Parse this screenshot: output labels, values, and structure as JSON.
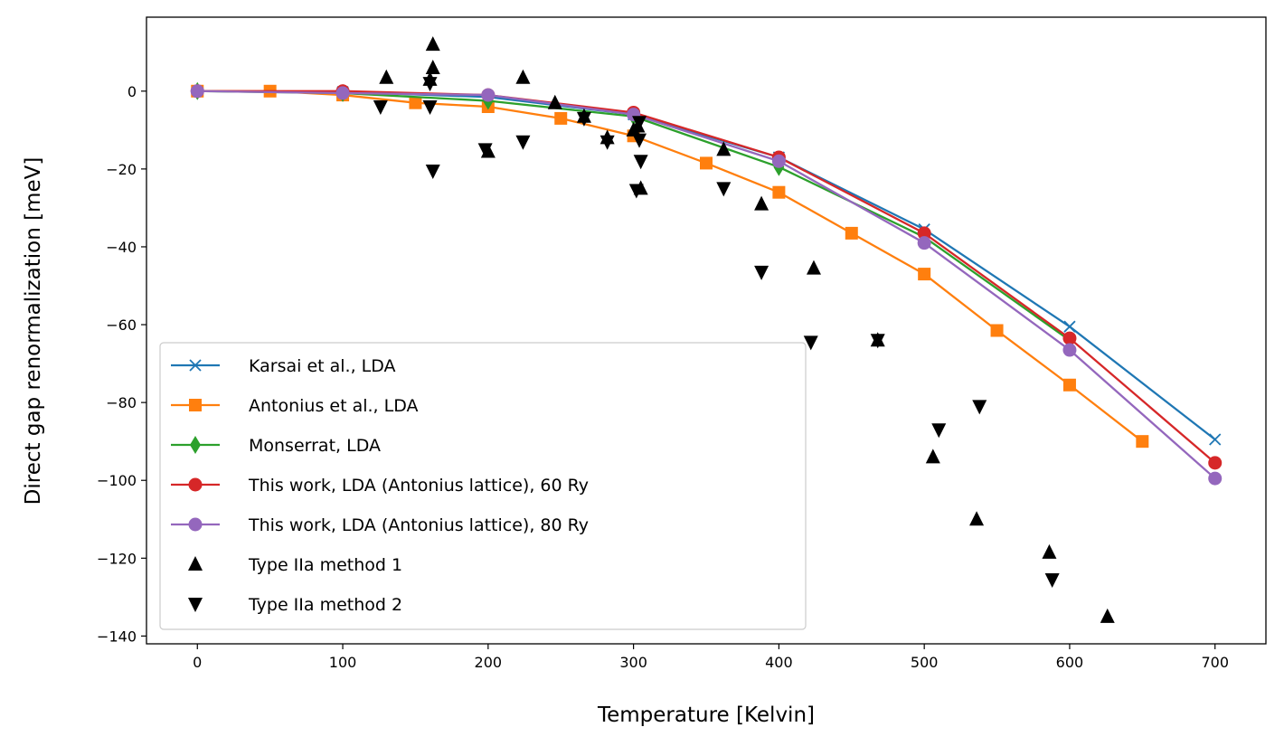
{
  "chart_data": {
    "type": "line",
    "title": "",
    "xlabel": "Temperature [Kelvin]",
    "ylabel": "Direct gap renormalization [meV]",
    "xlim": [
      -35,
      735
    ],
    "ylim": [
      -142,
      19
    ],
    "xticks": [
      0,
      100,
      200,
      300,
      400,
      500,
      600,
      700
    ],
    "yticks": [
      0,
      -20,
      -40,
      -60,
      -80,
      -100,
      -120,
      -140
    ],
    "grid": false,
    "legend_position": "lower-left",
    "series": [
      {
        "name": "Karsai et al., LDA",
        "color": "#1f77b4",
        "marker": "x",
        "line": true,
        "x": [
          0,
          100,
          200,
          300,
          400,
          500,
          600,
          700
        ],
        "y": [
          0,
          -0.2,
          -1.5,
          -6,
          -17,
          -35.5,
          -60.5,
          -89.5
        ]
      },
      {
        "name": "Antonius et al., LDA",
        "color": "#ff7f0e",
        "marker": "square",
        "line": true,
        "x": [
          0,
          50,
          100,
          150,
          200,
          250,
          300,
          350,
          400,
          450,
          500,
          550,
          600,
          650
        ],
        "y": [
          0,
          0,
          -1,
          -3,
          -4,
          -7,
          -11.5,
          -18.5,
          -26,
          -36.5,
          -47,
          -61.5,
          -75.5,
          -90
        ]
      },
      {
        "name": "Monserrat, LDA",
        "color": "#2ca02c",
        "marker": "diamond",
        "line": true,
        "x": [
          0,
          100,
          200,
          300,
          400,
          500,
          600
        ],
        "y": [
          0,
          -0.5,
          -2.5,
          -6.5,
          -19.5,
          -37.5,
          -64
        ]
      },
      {
        "name": "This work, LDA (Antonius lattice), 60 Ry",
        "color": "#d62728",
        "marker": "circle",
        "line": true,
        "x": [
          0,
          100,
          200,
          300,
          400,
          500,
          600,
          700
        ],
        "y": [
          0,
          0,
          -1,
          -5.5,
          -17,
          -36.5,
          -63.5,
          -95.5
        ]
      },
      {
        "name": "This work, LDA (Antonius lattice), 80 Ry",
        "color": "#9467bd",
        "marker": "circle",
        "line": true,
        "x": [
          0,
          100,
          200,
          300,
          400,
          500,
          600,
          700
        ],
        "y": [
          0,
          -0.5,
          -1,
          -6,
          -18,
          -39,
          -66.5,
          -99.5
        ]
      },
      {
        "name": "Type IIa method 1",
        "color": "#000000",
        "marker": "triangle-up",
        "line": false,
        "x": [
          130,
          162,
          162,
          160,
          200,
          224,
          246,
          266,
          282,
          300,
          303,
          305,
          362,
          388,
          424,
          468,
          506,
          536,
          586,
          626
        ],
        "y": [
          3.5,
          12,
          6,
          3,
          -15.5,
          3.5,
          -3,
          -6.5,
          -12,
          -10,
          -9,
          -25,
          -15,
          -29,
          -45.5,
          -64,
          -94,
          -110,
          -118.5,
          -135
        ]
      },
      {
        "name": "Type IIa method 2",
        "color": "#000000",
        "marker": "triangle-down",
        "line": false,
        "x": [
          126,
          160,
          160,
          162,
          198,
          224,
          266,
          282,
          302,
          304,
          305,
          304,
          362,
          388,
          422,
          468,
          510,
          538,
          588
        ],
        "y": [
          -4,
          -4,
          2,
          -20.5,
          -15,
          -13,
          -7,
          -13,
          -25.5,
          -12.5,
          -18,
          -8,
          -25,
          -46.5,
          -64.5,
          -64,
          -87,
          -81,
          -125.5
        ]
      }
    ]
  }
}
